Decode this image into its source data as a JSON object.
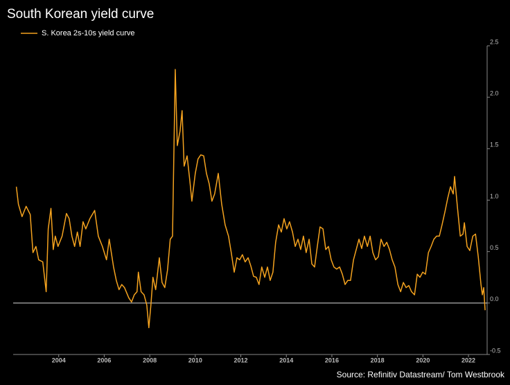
{
  "chart_data": {
    "type": "line",
    "title": "South Korean yield curve",
    "source": "Source: Refinitiv Datastream/ Tom Westbrook",
    "legend": "top-left",
    "x": [
      2002.14,
      2002.23,
      2002.39,
      2002.57,
      2002.75,
      2002.87,
      2003.0,
      2003.12,
      2003.3,
      2003.45,
      2003.54,
      2003.66,
      2003.76,
      2003.85,
      2003.97,
      2004.15,
      2004.34,
      2004.46,
      2004.58,
      2004.7,
      2004.82,
      2004.94,
      2005.07,
      2005.19,
      2005.37,
      2005.58,
      2005.74,
      2005.92,
      2006.1,
      2006.22,
      2006.41,
      2006.53,
      2006.65,
      2006.77,
      2006.89,
      2007.08,
      2007.2,
      2007.32,
      2007.44,
      2007.5,
      2007.62,
      2007.75,
      2007.87,
      2007.96,
      2008.05,
      2008.14,
      2008.26,
      2008.42,
      2008.54,
      2008.66,
      2008.78,
      2008.9,
      2009.0,
      2009.12,
      2009.21,
      2009.33,
      2009.42,
      2009.51,
      2009.64,
      2009.76,
      2009.85,
      2010.0,
      2010.12,
      2010.24,
      2010.37,
      2010.49,
      2010.61,
      2010.73,
      2010.85,
      2011.01,
      2011.16,
      2011.31,
      2011.46,
      2011.58,
      2011.71,
      2011.83,
      2011.95,
      2012.07,
      2012.19,
      2012.32,
      2012.44,
      2012.56,
      2012.68,
      2012.8,
      2012.92,
      2013.05,
      2013.17,
      2013.29,
      2013.41,
      2013.53,
      2013.66,
      2013.78,
      2013.9,
      2014.02,
      2014.14,
      2014.27,
      2014.39,
      2014.51,
      2014.63,
      2014.75,
      2014.87,
      2015.0,
      2015.12,
      2015.24,
      2015.36,
      2015.48,
      2015.61,
      2015.73,
      2015.85,
      2015.97,
      2016.09,
      2016.21,
      2016.34,
      2016.46,
      2016.58,
      2016.7,
      2016.82,
      2016.95,
      2017.07,
      2017.19,
      2017.31,
      2017.43,
      2017.56,
      2017.68,
      2017.8,
      2017.92,
      2018.04,
      2018.16,
      2018.29,
      2018.41,
      2018.53,
      2018.65,
      2018.77,
      2018.9,
      2019.02,
      2019.14,
      2019.26,
      2019.38,
      2019.5,
      2019.63,
      2019.75,
      2019.87,
      2019.99,
      2020.11,
      2020.24,
      2020.36,
      2020.48,
      2020.6,
      2020.72,
      2020.84,
      2020.97,
      2021.09,
      2021.21,
      2021.33,
      2021.39,
      2021.52,
      2021.64,
      2021.76,
      2021.82,
      2021.94,
      2022.06,
      2022.19,
      2022.31,
      2022.43,
      2022.55,
      2022.61,
      2022.67,
      2022.73
    ],
    "series": [
      {
        "name": "S. Korea 2s-10s yield curve",
        "color": "#f5a31f",
        "values": [
          1.13,
          0.96,
          0.84,
          0.94,
          0.86,
          0.49,
          0.55,
          0.42,
          0.4,
          0.11,
          0.72,
          0.92,
          0.52,
          0.65,
          0.55,
          0.65,
          0.87,
          0.82,
          0.65,
          0.55,
          0.69,
          0.55,
          0.79,
          0.72,
          0.82,
          0.9,
          0.65,
          0.55,
          0.42,
          0.62,
          0.35,
          0.22,
          0.13,
          0.18,
          0.15,
          0.05,
          0.01,
          0.08,
          0.11,
          0.3,
          0.11,
          0.08,
          -0.02,
          -0.24,
          -0.02,
          0.25,
          0.13,
          0.44,
          0.2,
          0.15,
          0.32,
          0.62,
          0.65,
          2.27,
          1.53,
          1.67,
          1.87,
          1.33,
          1.43,
          1.19,
          0.99,
          1.26,
          1.4,
          1.44,
          1.43,
          1.26,
          1.16,
          0.99,
          1.06,
          1.26,
          0.96,
          0.76,
          0.65,
          0.49,
          0.3,
          0.44,
          0.42,
          0.47,
          0.4,
          0.44,
          0.36,
          0.26,
          0.25,
          0.18,
          0.35,
          0.25,
          0.35,
          0.22,
          0.3,
          0.59,
          0.76,
          0.69,
          0.82,
          0.72,
          0.79,
          0.69,
          0.55,
          0.62,
          0.52,
          0.65,
          0.49,
          0.62,
          0.38,
          0.35,
          0.55,
          0.74,
          0.72,
          0.52,
          0.55,
          0.42,
          0.35,
          0.33,
          0.35,
          0.28,
          0.18,
          0.22,
          0.22,
          0.42,
          0.52,
          0.62,
          0.53,
          0.65,
          0.55,
          0.65,
          0.49,
          0.42,
          0.45,
          0.62,
          0.55,
          0.59,
          0.52,
          0.42,
          0.35,
          0.18,
          0.11,
          0.2,
          0.15,
          0.17,
          0.11,
          0.08,
          0.28,
          0.25,
          0.3,
          0.28,
          0.49,
          0.55,
          0.62,
          0.65,
          0.65,
          0.76,
          0.89,
          1.02,
          1.13,
          1.06,
          1.23,
          0.92,
          0.65,
          0.67,
          0.78,
          0.55,
          0.51,
          0.65,
          0.67,
          0.45,
          0.18,
          0.08,
          0.15,
          -0.07
        ]
      }
    ],
    "xlim": [
      2002.0,
      2022.82
    ],
    "xticks": [
      2004,
      2006,
      2008,
      2010,
      2012,
      2014,
      2016,
      2018,
      2020,
      2022
    ],
    "ylim": [
      -0.5,
      2.5
    ],
    "yticks": [
      2.5,
      {
        "value": 2,
        "label": "2.0"
      },
      1.5,
      {
        "value": 1,
        "label": "1.0"
      },
      0.5,
      {
        "value": 0,
        "label": "0.0"
      },
      -0.5
    ],
    "reference_line": 0
  }
}
